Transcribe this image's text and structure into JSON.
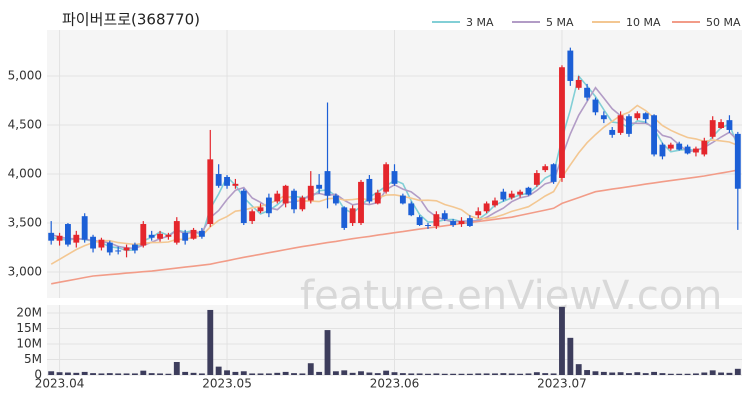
{
  "chart_data": {
    "type": "candlestick",
    "title": "파이버프로(368770)",
    "watermark": "feature.enViewV.com",
    "categories": [
      null,
      "2023.04",
      null,
      null,
      null,
      null,
      null,
      null,
      null,
      null,
      null,
      null,
      null,
      null,
      null,
      null,
      null,
      null,
      null,
      null,
      null,
      "2023.05",
      null,
      null,
      null,
      null,
      null,
      null,
      null,
      null,
      null,
      null,
      null,
      null,
      null,
      null,
      null,
      null,
      null,
      null,
      null,
      "2023.06",
      null,
      null,
      null,
      null,
      null,
      null,
      null,
      null,
      null,
      null,
      null,
      null,
      null,
      null,
      null,
      null,
      null,
      null,
      null,
      "2023.07",
      null,
      null,
      null,
      null,
      null,
      null,
      null,
      null,
      null,
      null,
      null,
      null,
      null,
      null,
      null,
      null,
      null,
      null,
      null,
      null,
      null
    ],
    "open": [
      3400,
      3320,
      3490,
      3300,
      3570,
      3360,
      3250,
      3300,
      3220,
      3220,
      3280,
      3270,
      3380,
      3340,
      3360,
      3300,
      3400,
      3340,
      3420,
      3490,
      4000,
      3970,
      3880,
      3830,
      3520,
      3620,
      3760,
      3720,
      3700,
      3830,
      3640,
      3730,
      3890,
      4030,
      3780,
      3660,
      3500,
      3500,
      3950,
      3700,
      3820,
      4030,
      3780,
      3700,
      3560,
      3480,
      3470,
      3600,
      3520,
      3490,
      3550,
      3580,
      3620,
      3680,
      3820,
      3760,
      3790,
      3860,
      3890,
      4040,
      4100,
      3960,
      5260,
      4880,
      4880,
      4760,
      4600,
      4450,
      4420,
      4590,
      4570,
      4620,
      4600,
      4300,
      4260,
      4310,
      4280,
      4220,
      4200,
      4380,
      4470,
      4550,
      4410
    ],
    "high": [
      3520,
      3400,
      3500,
      3420,
      3600,
      3380,
      3350,
      3320,
      3260,
      3280,
      3300,
      3520,
      3420,
      3420,
      3400,
      3560,
      3430,
      3450,
      3450,
      4450,
      4100,
      3990,
      3950,
      3850,
      3640,
      3700,
      3800,
      3830,
      3890,
      3850,
      3780,
      4030,
      4000,
      4730,
      3800,
      3670,
      3680,
      3940,
      3990,
      3840,
      4120,
      4100,
      3800,
      3720,
      3580,
      3500,
      3620,
      3630,
      3540,
      3560,
      3580,
      3660,
      3720,
      3760,
      3850,
      3830,
      3840,
      3870,
      4040,
      4100,
      4110,
      5110,
      5290,
      5000,
      4920,
      4780,
      4640,
      4480,
      4640,
      4610,
      4640,
      4630,
      4610,
      4320,
      4320,
      4330,
      4300,
      4280,
      4370,
      4590,
      4560,
      4600,
      4430
    ],
    "low": [
      3280,
      3270,
      3260,
      3250,
      3300,
      3200,
      3220,
      3170,
      3180,
      3150,
      3190,
      3250,
      3320,
      3310,
      3330,
      3280,
      3280,
      3330,
      3340,
      3460,
      3860,
      3850,
      3850,
      3480,
      3490,
      3600,
      3560,
      3700,
      3660,
      3600,
      3620,
      3700,
      3800,
      3650,
      3680,
      3430,
      3470,
      3480,
      3700,
      3690,
      3800,
      3880,
      3690,
      3570,
      3470,
      3440,
      3440,
      3520,
      3460,
      3460,
      3460,
      3550,
      3600,
      3660,
      3720,
      3740,
      3760,
      3780,
      3870,
      4020,
      3900,
      3920,
      4900,
      4860,
      4750,
      4600,
      4520,
      4370,
      4400,
      4380,
      4550,
      4520,
      4180,
      4150,
      4240,
      4240,
      4200,
      4180,
      4180,
      4360,
      4460,
      4420,
      3430
    ],
    "close": [
      3320,
      3370,
      3280,
      3380,
      3330,
      3240,
      3330,
      3200,
      3210,
      3250,
      3220,
      3490,
      3350,
      3390,
      3380,
      3520,
      3320,
      3430,
      3360,
      4150,
      3880,
      3880,
      3900,
      3500,
      3620,
      3660,
      3600,
      3800,
      3880,
      3640,
      3760,
      3880,
      3850,
      3780,
      3700,
      3450,
      3650,
      3920,
      3720,
      3810,
      4100,
      3900,
      3700,
      3580,
      3480,
      3470,
      3590,
      3540,
      3480,
      3520,
      3470,
      3620,
      3700,
      3730,
      3740,
      3800,
      3820,
      3790,
      4010,
      4080,
      3920,
      5090,
      4950,
      4960,
      4780,
      4630,
      4560,
      4400,
      4600,
      4410,
      4620,
      4560,
      4200,
      4180,
      4300,
      4250,
      4210,
      4260,
      4340,
      4550,
      4530,
      4450,
      3850
    ],
    "volume": [
      1200000,
      900000,
      800000,
      700000,
      1000000,
      600000,
      500000,
      600000,
      500000,
      500000,
      500000,
      1400000,
      600000,
      500000,
      400000,
      4200000,
      1000000,
      700000,
      500000,
      21000000,
      2700000,
      1500000,
      1000000,
      1200000,
      500000,
      500000,
      500000,
      700000,
      1000000,
      600000,
      500000,
      3800000,
      1000000,
      14500000,
      1200000,
      1500000,
      700000,
      1200000,
      800000,
      600000,
      1400000,
      900000,
      600000,
      500000,
      500000,
      400000,
      500000,
      400000,
      400000,
      400000,
      400000,
      500000,
      500000,
      500000,
      600000,
      500000,
      400000,
      500000,
      900000,
      600000,
      500000,
      22000000,
      12000000,
      3500000,
      1600000,
      1200000,
      1000000,
      800000,
      900000,
      600000,
      900000,
      600000,
      1000000,
      600000,
      400000,
      400000,
      400000,
      500000,
      800000,
      1500000,
      800000,
      700000,
      2000000
    ],
    "up_color": "#e4262c",
    "down_color": "#1c5fd6",
    "volume_color": "#3d3d5c",
    "series": [
      {
        "name": "3 MA",
        "color": "#82cfd6",
        "values": [
          3350,
          3340,
          3323,
          3343,
          3330,
          3317,
          3300,
          3257,
          3247,
          3220,
          3227,
          3320,
          3353,
          3410,
          3373,
          3430,
          3407,
          3423,
          3370,
          3647,
          3797,
          3970,
          3887,
          3760,
          3673,
          3593,
          3627,
          3687,
          3760,
          3773,
          3760,
          3760,
          3830,
          3837,
          3777,
          3643,
          3600,
          3673,
          3763,
          3817,
          3877,
          3937,
          3900,
          3727,
          3587,
          3510,
          3513,
          3533,
          3537,
          3513,
          3490,
          3537,
          3597,
          3683,
          3723,
          3757,
          3787,
          3803,
          3873,
          3960,
          4003,
          4363,
          4653,
          5000,
          4897,
          4790,
          4657,
          4530,
          4520,
          4470,
          4543,
          4530,
          4460,
          4313,
          4227,
          4243,
          4253,
          4240,
          4270,
          4383,
          4473,
          4510,
          4277
        ]
      },
      {
        "name": "5 MA",
        "color": "#b29cc6",
        "values": [
          3380,
          3360,
          3340,
          3340,
          3336,
          3320,
          3312,
          3296,
          3262,
          3246,
          3242,
          3274,
          3304,
          3340,
          3366,
          3426,
          3392,
          3408,
          3402,
          3556,
          3628,
          3740,
          3834,
          3862,
          3756,
          3712,
          3656,
          3636,
          3712,
          3716,
          3736,
          3792,
          3802,
          3782,
          3794,
          3732,
          3686,
          3700,
          3688,
          3710,
          3840,
          3890,
          3846,
          3818,
          3752,
          3626,
          3564,
          3532,
          3512,
          3520,
          3520,
          3526,
          3558,
          3608,
          3652,
          3718,
          3758,
          3776,
          3832,
          3900,
          3924,
          4178,
          4410,
          4600,
          4740,
          4882,
          4776,
          4666,
          4594,
          4520,
          4518,
          4518,
          4478,
          4394,
          4372,
          4298,
          4228,
          4240,
          4272,
          4322,
          4378,
          4426,
          4344
        ]
      },
      {
        "name": "10 MA",
        "color": "#f3c792",
        "values": [
          3080,
          3130,
          3180,
          3230,
          3270,
          3300,
          3320,
          3320,
          3300,
          3291,
          3281,
          3293,
          3300,
          3301,
          3306,
          3334,
          3333,
          3356,
          3371,
          3461,
          3527,
          3566,
          3621,
          3632,
          3656,
          3670,
          3698,
          3735,
          3787,
          3736,
          3724,
          3724,
          3719,
          3747,
          3755,
          3734,
          3739,
          3751,
          3735,
          3752,
          3786,
          3788,
          3773,
          3753,
          3731,
          3733,
          3727,
          3689,
          3665,
          3636,
          3573,
          3545,
          3545,
          3560,
          3586,
          3619,
          3642,
          3667,
          3720,
          3776,
          3821,
          3968,
          4093,
          4216,
          4320,
          4403,
          4477,
          4538,
          4597,
          4630,
          4700,
          4647,
          4572,
          4494,
          4446,
          4408,
          4373,
          4359,
          4333,
          4347,
          4338,
          4327,
          4292
        ]
      },
      {
        "name": "50 MA",
        "color": "#f29c88",
        "values": [
          2880,
          2896,
          2912,
          2928,
          2944,
          2960,
          2967,
          2974,
          2981,
          2989,
          2996,
          3003,
          3010,
          3020,
          3030,
          3040,
          3050,
          3060,
          3070,
          3080,
          3098,
          3115,
          3133,
          3150,
          3166,
          3181,
          3197,
          3213,
          3229,
          3244,
          3260,
          3273,
          3287,
          3300,
          3313,
          3327,
          3340,
          3352,
          3364,
          3377,
          3389,
          3401,
          3413,
          3426,
          3438,
          3450,
          3461,
          3472,
          3483,
          3494,
          3505,
          3516,
          3527,
          3538,
          3549,
          3560,
          3578,
          3596,
          3614,
          3632,
          3650,
          3700,
          3730,
          3760,
          3790,
          3820,
          3833,
          3846,
          3859,
          3871,
          3884,
          3897,
          3910,
          3922,
          3933,
          3945,
          3957,
          3968,
          3980,
          3995,
          4010,
          4025,
          4040
        ]
      }
    ],
    "ylim": [
      2735,
      5470
    ],
    "yticks": [
      {
        "value": 3000,
        "label": "3,000"
      },
      {
        "value": 3500,
        "label": "3,500"
      },
      {
        "value": 4000,
        "label": "4,000"
      },
      {
        "value": 4500,
        "label": "4,500"
      },
      {
        "value": 5000,
        "label": "5,000"
      }
    ],
    "volume_ylim": [
      0,
      22600000
    ],
    "volume_yticks": [
      0,
      {
        "value": 5000000,
        "label": "5M"
      },
      {
        "value": 10000000,
        "label": "10M"
      },
      {
        "value": 15000000,
        "label": "15M"
      },
      {
        "value": 20000000,
        "label": "20M"
      }
    ],
    "grid": true
  }
}
